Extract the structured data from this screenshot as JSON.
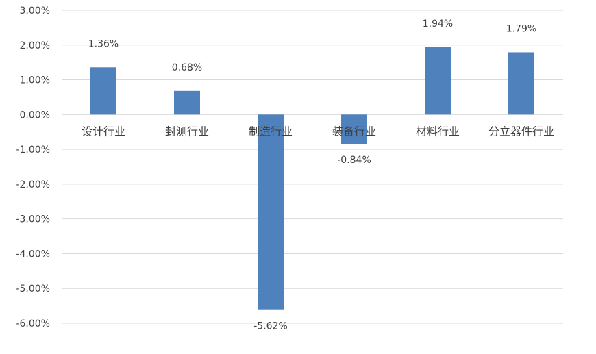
{
  "chart_data": {
    "type": "bar",
    "categories": [
      "设计行业",
      "封测行业",
      "制造行业",
      "装备行业",
      "材料行业",
      "分立器件行业"
    ],
    "values": [
      1.36,
      0.68,
      -5.62,
      -0.84,
      1.94,
      1.79
    ],
    "data_labels": [
      "1.36%",
      "0.68%",
      "-5.62%",
      "-0.84%",
      "1.94%",
      "1.79%"
    ],
    "y_ticks": [
      3,
      2,
      1,
      0,
      -1,
      -2,
      -3,
      -4,
      -5,
      -6
    ],
    "y_tick_labels": [
      "3.00%",
      "2.00%",
      "1.00%",
      "0.00%",
      "-1.00%",
      "-2.00%",
      "-3.00%",
      "-4.00%",
      "-5.00%",
      "-6.00%"
    ],
    "ylim": [
      -6,
      3
    ],
    "grid": true,
    "title": "",
    "xlabel": "",
    "ylabel": "",
    "bar_color": "#4f81bd"
  }
}
